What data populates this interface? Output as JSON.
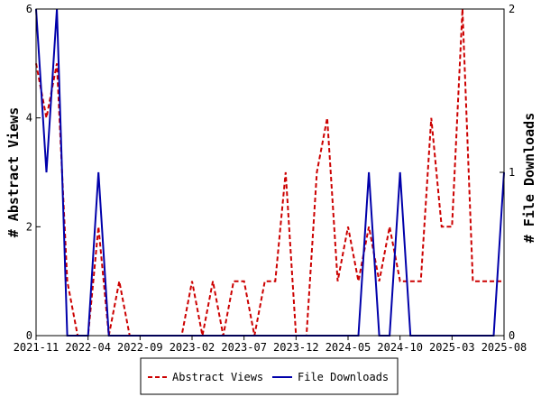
{
  "chart_data": {
    "type": "line",
    "x_tick_labels": [
      "2021-11",
      "2022-04",
      "2022-09",
      "2023-02",
      "2023-07",
      "2023-12",
      "2024-05",
      "2024-10",
      "2025-03",
      "2025-08"
    ],
    "x_range": [
      "2021-11",
      "2025-08"
    ],
    "ylabel_left": "# Abstract Views",
    "ylabel_right": "# File Downloads",
    "ylim_left": [
      0,
      6
    ],
    "ylim_right": [
      0,
      2
    ],
    "yticks_left": [
      "0",
      "2",
      "4",
      "6"
    ],
    "yticks_right": [
      "0",
      "1",
      "2"
    ],
    "grid": false,
    "legend_position": "bottom",
    "series": [
      {
        "name": "Abstract Views",
        "color": "#cc0000",
        "style": "dashed",
        "axis": "left",
        "x": [
          "2021-11",
          "2021-12",
          "2022-01",
          "2022-02",
          "2022-03",
          "2022-04",
          "2022-05",
          "2022-06",
          "2022-07",
          "2022-08",
          "2022-09",
          "2022-10",
          "2022-11",
          "2022-12",
          "2023-01",
          "2023-02",
          "2023-03",
          "2023-04",
          "2023-05",
          "2023-06",
          "2023-07",
          "2023-08",
          "2023-09",
          "2023-10",
          "2023-11",
          "2023-12",
          "2024-01",
          "2024-02",
          "2024-03",
          "2024-04",
          "2024-05",
          "2024-06",
          "2024-07",
          "2024-08",
          "2024-09",
          "2024-10",
          "2024-11",
          "2024-12",
          "2025-01",
          "2025-02",
          "2025-03",
          "2025-04",
          "2025-05",
          "2025-06",
          "2025-07",
          "2025-08"
        ],
        "values": [
          5,
          4,
          5,
          1,
          0,
          0,
          2,
          0,
          1,
          0,
          0,
          0,
          0,
          0,
          0,
          1,
          0,
          1,
          0,
          1,
          1,
          0,
          1,
          1,
          3,
          0,
          0,
          3,
          4,
          1,
          2,
          1,
          2,
          1,
          2,
          1,
          1,
          1,
          4,
          2,
          2,
          6,
          1,
          1,
          1,
          1
        ]
      },
      {
        "name": "File Downloads",
        "color": "#0000aa",
        "style": "solid",
        "axis": "right",
        "x": [
          "2021-11",
          "2021-12",
          "2022-01",
          "2022-02",
          "2022-03",
          "2022-04",
          "2022-05",
          "2022-06",
          "2022-07",
          "2022-08",
          "2022-09",
          "2022-10",
          "2022-11",
          "2022-12",
          "2023-01",
          "2023-02",
          "2023-03",
          "2023-04",
          "2023-05",
          "2023-06",
          "2023-07",
          "2023-08",
          "2023-09",
          "2023-10",
          "2023-11",
          "2023-12",
          "2024-01",
          "2024-02",
          "2024-03",
          "2024-04",
          "2024-05",
          "2024-06",
          "2024-07",
          "2024-08",
          "2024-09",
          "2024-10",
          "2024-11",
          "2024-12",
          "2025-01",
          "2025-02",
          "2025-03",
          "2025-04",
          "2025-05",
          "2025-06",
          "2025-07",
          "2025-08"
        ],
        "values": [
          2,
          1,
          2,
          0,
          0,
          0,
          1,
          0,
          0,
          0,
          0,
          0,
          0,
          0,
          0,
          0,
          0,
          0,
          0,
          0,
          0,
          0,
          0,
          0,
          0,
          0,
          0,
          0,
          0,
          0,
          0,
          0,
          1,
          0,
          0,
          1,
          0,
          0,
          0,
          0,
          0,
          0,
          0,
          0,
          0,
          1
        ]
      }
    ]
  }
}
